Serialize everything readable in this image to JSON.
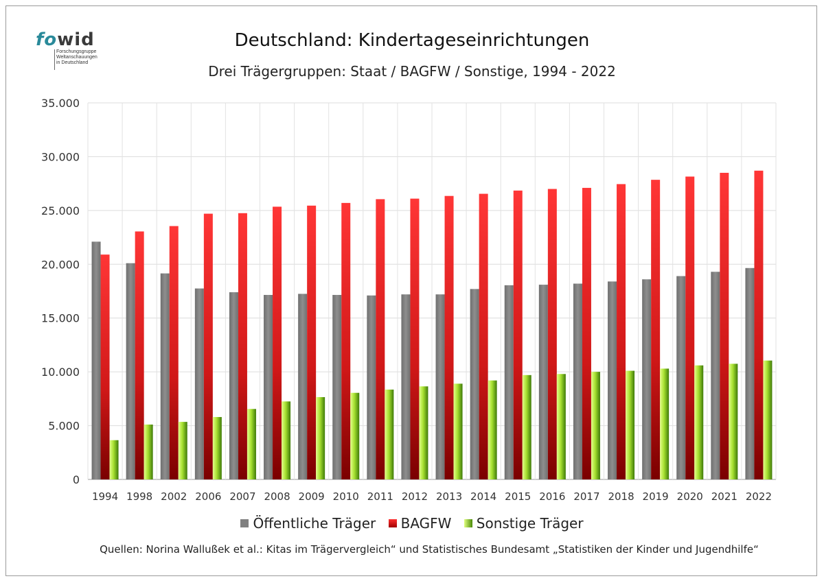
{
  "logo": {
    "mark_fo": "fo",
    "mark_wid": "wid",
    "subtext": "Forschungsgruppe\nWeltanschauungen\nin Deutschland"
  },
  "chart_data": {
    "type": "bar",
    "title": "Deutschland: Kindertageseinrichtungen",
    "subtitle": "Drei Trägergruppen: Staat / BAGFW / Sonstige, 1994 - 2022",
    "categories": [
      "1994",
      "1998",
      "2002",
      "2006",
      "2007",
      "2008",
      "2009",
      "2010",
      "2011",
      "2012",
      "2013",
      "2014",
      "2015",
      "2016",
      "2017",
      "2018",
      "2019",
      "2020",
      "2021",
      "2022"
    ],
    "ylim": [
      0,
      35000
    ],
    "yticks": [
      0,
      5000,
      10000,
      15000,
      20000,
      25000,
      30000,
      35000
    ],
    "ytick_labels": [
      "0",
      "5.000",
      "10.000",
      "15.000",
      "20.000",
      "25.000",
      "30.000",
      "35.000"
    ],
    "grid": true,
    "legend_position": "bottom",
    "series": [
      {
        "name": "Öffentliche Träger",
        "color": "#808080",
        "values": [
          22100,
          20100,
          19150,
          17750,
          17400,
          17150,
          17250,
          17150,
          17100,
          17200,
          17200,
          17700,
          18050,
          18100,
          18200,
          18400,
          18600,
          18900,
          19300,
          19650
        ]
      },
      {
        "name": "BAGFW",
        "color": "#e02020",
        "values": [
          20900,
          23050,
          23550,
          24700,
          24750,
          25350,
          25450,
          25700,
          26050,
          26100,
          26350,
          26550,
          26850,
          27000,
          27100,
          27450,
          27850,
          28150,
          28500,
          28700
        ]
      },
      {
        "name": "Sonstige Träger",
        "color": "#8cc820",
        "values": [
          3650,
          5100,
          5350,
          5800,
          6550,
          7250,
          7650,
          8050,
          8350,
          8650,
          8900,
          9200,
          9700,
          9800,
          10000,
          10100,
          10300,
          10600,
          10750,
          11050
        ]
      }
    ]
  },
  "source_text": "Quellen: Norina Wallußek et al.: Kitas im Trägervergleich“ und Statistisches Bundesamt „Statistiken der Kinder und Jugendhilfe“"
}
